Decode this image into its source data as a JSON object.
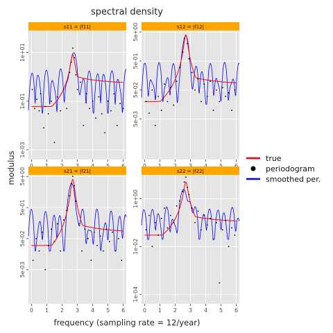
{
  "chart_data": {
    "type": "line",
    "title": "spectral density",
    "xlabel": "frequency (sampling rate = 12/year)",
    "ylabel": "modulus",
    "xlim": [
      -0.2,
      6.2
    ],
    "x_ticks": [
      0,
      1,
      2,
      3,
      4,
      5,
      6
    ],
    "log_y": true,
    "legend": {
      "placement": "right",
      "entries": [
        {
          "label": "true",
          "kind": "line",
          "color": "#ff0000"
        },
        {
          "label": "periodogram",
          "kind": "point",
          "color": "#000000"
        },
        {
          "label": "smoothed per.",
          "kind": "line",
          "color": "#0000ff"
        }
      ]
    },
    "colors": {
      "panel_bg": "#e5e5e5",
      "grid": "#ffffff",
      "strip_bg": "#ffa500"
    },
    "panels": [
      {
        "strip_label": "s11 = |f11|",
        "ylim_log10": [
          -3.4,
          1.9
        ],
        "y_ticks": [
          {
            "value": 10,
            "label": "1e+01"
          },
          {
            "value": 0.1,
            "label": "1e-01"
          },
          {
            "value": 0.001,
            "label": "1e-03"
          }
        ],
        "true_series": {
          "base": 0.06,
          "peak_freq": 2.7,
          "peak_value": 8,
          "high_freq_value": 0.4
        },
        "smoothed_series": {
          "level": 0.7,
          "range": [
            0.08,
            3
          ]
        },
        "periodogram_points": [
          [
            0.05,
            0.3
          ],
          [
            0.2,
            0.05
          ],
          [
            0.35,
            0.12
          ],
          [
            0.5,
            0.04
          ],
          [
            0.6,
            0.2
          ],
          [
            0.8,
            0.008
          ],
          [
            0.9,
            0.06
          ],
          [
            1.1,
            0.03
          ],
          [
            1.3,
            0.1
          ],
          [
            1.5,
            0.002
          ],
          [
            1.7,
            0.15
          ],
          [
            1.9,
            0.04
          ],
          [
            2.1,
            0.3
          ],
          [
            2.3,
            0.05
          ],
          [
            2.5,
            1.5
          ],
          [
            2.6,
            4
          ],
          [
            2.7,
            15
          ],
          [
            2.8,
            6
          ],
          [
            2.9,
            1.2
          ],
          [
            3.0,
            0.3
          ],
          [
            3.2,
            0.6
          ],
          [
            3.4,
            0.01
          ],
          [
            3.6,
            0.2
          ],
          [
            3.8,
            0.05
          ],
          [
            4.0,
            0.1
          ],
          [
            4.2,
            0.02
          ],
          [
            4.4,
            0.15
          ],
          [
            4.6,
            0.03
          ],
          [
            4.8,
            0.005
          ],
          [
            5.0,
            0.1
          ],
          [
            5.2,
            0.04
          ],
          [
            5.4,
            0.2
          ],
          [
            5.6,
            0.01
          ],
          [
            5.8,
            0.08
          ],
          [
            6.0,
            0.05
          ]
        ]
      },
      {
        "strip_label": "s12 = |f12|",
        "ylim_log10": [
          -3.7,
          0.75
        ],
        "y_ticks": [
          {
            "value": 5,
            "label": "5e+00"
          },
          {
            "value": 0.5,
            "label": "5e-01"
          },
          {
            "value": 0.05,
            "label": "5e-02"
          },
          {
            "value": 0.005,
            "label": "5e-03"
          }
        ],
        "true_series": {
          "base": 0.02,
          "peak_freq": 2.7,
          "peak_value": 4,
          "high_freq_value": 0.06
        },
        "smoothed_series": {
          "level": 0.35,
          "range": [
            0.04,
            1.2
          ]
        },
        "periodogram_points": [
          [
            0.1,
            0.02
          ],
          [
            0.3,
            0.008
          ],
          [
            0.5,
            0.05
          ],
          [
            0.7,
            0.003
          ],
          [
            0.9,
            0.03
          ],
          [
            1.1,
            0.01
          ],
          [
            1.3,
            0.08
          ],
          [
            1.5,
            0.02
          ],
          [
            1.7,
            0.06
          ],
          [
            1.9,
            0.015
          ],
          [
            2.1,
            0.1
          ],
          [
            2.3,
            0.3
          ],
          [
            2.5,
            1.0
          ],
          [
            2.6,
            3
          ],
          [
            2.7,
            6
          ],
          [
            2.8,
            2
          ],
          [
            2.9,
            0.6
          ],
          [
            3.1,
            0.2
          ],
          [
            3.3,
            0.05
          ],
          [
            3.5,
            0.12
          ],
          [
            3.7,
            0.02
          ],
          [
            3.9,
            0.08
          ],
          [
            4.1,
            0.03
          ],
          [
            4.3,
            0.1
          ],
          [
            4.5,
            0.01
          ],
          [
            4.7,
            0.05
          ],
          [
            4.9,
            0.02
          ],
          [
            5.1,
            0.06
          ],
          [
            5.3,
            0.03
          ],
          [
            5.5,
            0.04
          ],
          [
            5.7,
            0.01
          ],
          [
            5.9,
            0.05
          ]
        ]
      },
      {
        "strip_label": "s21 = |f21|",
        "ylim_log10": [
          -3.4,
          0.75
        ],
        "y_ticks": [
          {
            "value": 5,
            "label": "5e+00"
          },
          {
            "value": 0.5,
            "label": "5e-01"
          },
          {
            "value": 0.05,
            "label": "5e-02"
          },
          {
            "value": 0.005,
            "label": "5e-03"
          }
        ],
        "true_series": {
          "base": 0.03,
          "peak_freq": 2.7,
          "peak_value": 4,
          "high_freq_value": 0.06
        },
        "smoothed_series": {
          "level": 0.35,
          "range": [
            0.05,
            1.2
          ]
        },
        "periodogram_points": [
          [
            0.1,
            0.01
          ],
          [
            0.3,
            0.05
          ],
          [
            0.5,
            0.02
          ],
          [
            0.7,
            0.08
          ],
          [
            0.9,
            0.005
          ],
          [
            1.1,
            0.03
          ],
          [
            1.3,
            0.1
          ],
          [
            1.5,
            0.04
          ],
          [
            1.7,
            0.15
          ],
          [
            1.9,
            0.02
          ],
          [
            2.1,
            0.2
          ],
          [
            2.3,
            0.4
          ],
          [
            2.5,
            1.2
          ],
          [
            2.6,
            3
          ],
          [
            2.7,
            5
          ],
          [
            2.8,
            2.5
          ],
          [
            2.9,
            0.8
          ],
          [
            3.1,
            0.15
          ],
          [
            3.3,
            0.02
          ],
          [
            3.5,
            0.1
          ],
          [
            3.7,
            0.05
          ],
          [
            3.9,
            0.01
          ],
          [
            4.1,
            0.08
          ],
          [
            4.3,
            0.03
          ],
          [
            4.5,
            0.06
          ],
          [
            4.7,
            0.02
          ],
          [
            4.9,
            0.1
          ],
          [
            5.1,
            0.04
          ],
          [
            5.3,
            0.08
          ],
          [
            5.5,
            0.02
          ],
          [
            5.7,
            0.05
          ],
          [
            5.9,
            0.01
          ]
        ]
      },
      {
        "strip_label": "s22 = |f22|",
        "ylim_log10": [
          -4.4,
          1.0
        ],
        "y_ticks": [
          {
            "value": 1,
            "label": "1e+00"
          },
          {
            "value": 0.01,
            "label": "1e-02"
          },
          {
            "value": 0.0001,
            "label": "1e-04"
          }
        ],
        "true_series": {
          "base": 0.03,
          "peak_freq": 2.7,
          "peak_value": 5,
          "high_freq_value": 0.08
        },
        "smoothed_series": {
          "level": 0.3,
          "range": [
            0.05,
            1.5
          ]
        },
        "periodogram_points": [
          [
            0.1,
            0.05
          ],
          [
            0.3,
            0.2
          ],
          [
            0.5,
            0.01
          ],
          [
            0.7,
            0.1
          ],
          [
            0.9,
            0.03
          ],
          [
            1.1,
            0.15
          ],
          [
            1.3,
            0.4
          ],
          [
            1.5,
            0.06
          ],
          [
            1.7,
            0.2
          ],
          [
            1.9,
            0.1
          ],
          [
            2.1,
            0.5
          ],
          [
            2.3,
            0.8
          ],
          [
            2.5,
            2
          ],
          [
            2.6,
            5
          ],
          [
            2.7,
            8
          ],
          [
            2.8,
            3
          ],
          [
            2.9,
            1.5
          ],
          [
            3.1,
            0.4
          ],
          [
            3.3,
            0.1
          ],
          [
            3.5,
            0.3
          ],
          [
            3.7,
            0.05
          ],
          [
            3.9,
            0.2
          ],
          [
            4.1,
            0.08
          ],
          [
            4.3,
            0.15
          ],
          [
            4.5,
            0.02
          ],
          [
            4.7,
            0.1
          ],
          [
            4.9,
            0.0003
          ],
          [
            5.1,
            0.05
          ],
          [
            5.3,
            0.12
          ],
          [
            5.5,
            0.01
          ],
          [
            5.7,
            0.06
          ],
          [
            5.9,
            0.03
          ]
        ]
      }
    ]
  }
}
